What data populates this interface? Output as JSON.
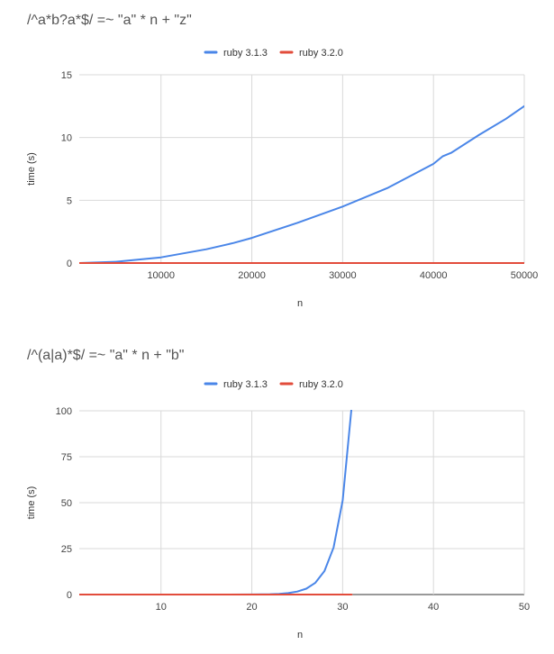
{
  "chart_data": [
    {
      "type": "line",
      "title": "/^a*b?a*$/ =~ \"a\" * n + \"z\"",
      "xlabel": "n",
      "ylabel": "time (s)",
      "xlim": [
        1000,
        50000
      ],
      "ylim": [
        0,
        15
      ],
      "xticks": [
        10000,
        20000,
        30000,
        40000,
        50000
      ],
      "yticks": [
        0,
        5,
        10,
        15
      ],
      "grid": true,
      "legend": "top-center",
      "x": [
        1000,
        5000,
        10000,
        15000,
        18000,
        20000,
        25000,
        30000,
        35000,
        40000,
        41000,
        42000,
        45000,
        48000,
        50000
      ],
      "series": [
        {
          "name": "ruby 3.1.3",
          "color": "#4a86e8",
          "values": [
            0.0,
            0.1,
            0.45,
            1.1,
            1.6,
            2.0,
            3.2,
            4.5,
            6.0,
            7.9,
            8.5,
            8.8,
            10.2,
            11.5,
            12.5
          ]
        },
        {
          "name": "ruby 3.2.0",
          "color": "#e24c3b",
          "values": [
            0.0,
            0.0,
            0.0,
            0.0,
            0.0,
            0.0,
            0.0,
            0.0,
            0.0,
            0.0,
            0.0,
            0.0,
            0.0,
            0.0,
            0.0
          ]
        }
      ]
    },
    {
      "type": "line",
      "title": "/^(a|a)*$/ =~ \"a\" * n + \"b\"",
      "xlabel": "n",
      "ylabel": "time (s)",
      "xlim": [
        1,
        50
      ],
      "ylim": [
        0,
        100
      ],
      "xticks": [
        10,
        20,
        30,
        40,
        50
      ],
      "yticks": [
        0,
        25,
        50,
        75,
        100
      ],
      "grid": true,
      "legend": "top-center",
      "x": [
        1,
        5,
        10,
        15,
        20,
        22,
        23,
        24,
        25,
        26,
        27,
        28,
        29,
        30,
        31
      ],
      "series": [
        {
          "name": "ruby 3.1.3",
          "color": "#4a86e8",
          "values": [
            0.0,
            0.0,
            0.0,
            0.0,
            0.05,
            0.2,
            0.4,
            0.8,
            1.6,
            3.2,
            6.4,
            12.8,
            25.6,
            51.2,
            102.4
          ]
        },
        {
          "name": "ruby 3.2.0",
          "color": "#e24c3b",
          "values": [
            0.0,
            0.0,
            0.0,
            0.0,
            0.0,
            0.0,
            0.0,
            0.0,
            0.0,
            0.0,
            0.0,
            0.0,
            0.0,
            0.0,
            0.0
          ]
        }
      ]
    }
  ]
}
